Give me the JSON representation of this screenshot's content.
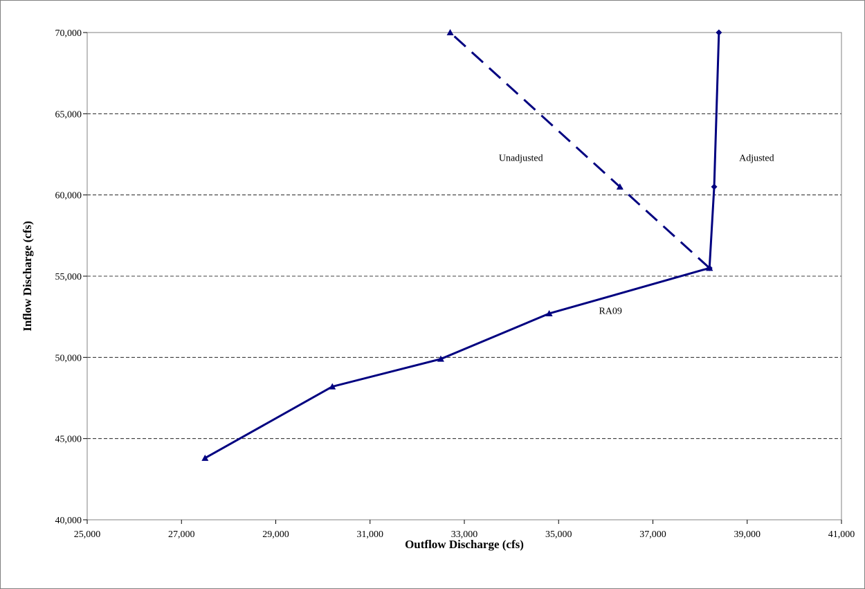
{
  "chart_data": {
    "type": "line",
    "title": "",
    "xlabel": "Outflow Discharge (cfs)",
    "ylabel": "Inflow Discharge (cfs)",
    "xlim": [
      25000,
      41000
    ],
    "ylim": [
      40000,
      70000
    ],
    "xticks": [
      25000,
      27000,
      29000,
      31000,
      33000,
      35000,
      37000,
      39000,
      41000
    ],
    "yticks": [
      40000,
      45000,
      50000,
      55000,
      60000,
      65000,
      70000
    ],
    "xtick_labels": [
      "25,000",
      "27,000",
      "29,000",
      "31,000",
      "33,000",
      "35,000",
      "37,000",
      "39,000",
      "41,000"
    ],
    "ytick_labels": [
      "40,000",
      "45,000",
      "50,000",
      "55,000",
      "60,000",
      "65,000",
      "70,000"
    ],
    "grid": "horizontal-dashed",
    "line_color": "#000080",
    "series": [
      {
        "id": "ra09",
        "style": "solid",
        "marker": "triangle",
        "x": [
          27500,
          30200,
          32500,
          34800,
          38200
        ],
        "y": [
          43800,
          48200,
          49900,
          52700,
          55500
        ]
      },
      {
        "id": "unadjusted",
        "style": "dashed",
        "marker": "triangle",
        "x": [
          38200,
          36300,
          32700
        ],
        "y": [
          55500,
          60500,
          70000
        ]
      },
      {
        "id": "adjusted",
        "style": "solid",
        "marker": "diamond",
        "x": [
          38200,
          38300,
          38400
        ],
        "y": [
          55500,
          60500,
          70000
        ]
      }
    ],
    "annotations": [
      {
        "text": "Unadjusted",
        "x": 34200,
        "y": 62300
      },
      {
        "text": "Adjusted",
        "x": 39200,
        "y": 62300
      },
      {
        "text": "RA09",
        "x": 36100,
        "y": 52900
      }
    ]
  }
}
